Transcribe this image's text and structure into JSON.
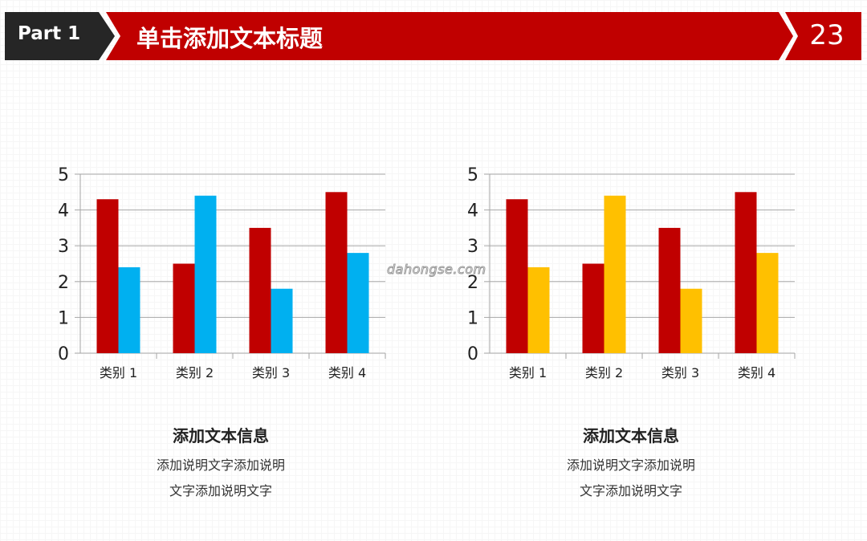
{
  "header": {
    "part_label": "Part 1",
    "title": "单击添加文本标题",
    "page_number": "23"
  },
  "colors": {
    "header_red": "#c00000",
    "header_dark": "#262626",
    "series_red": "#c00000",
    "series_blue": "#00b0f0",
    "series_yellow": "#ffc000"
  },
  "watermark": "dahongse.com",
  "chart_data": [
    {
      "type": "bar",
      "categories": [
        "类别 1",
        "类别 2",
        "类别 3",
        "类别 4"
      ],
      "series": [
        {
          "values": [
            4.3,
            2.5,
            3.5,
            4.5
          ],
          "color": "#c00000"
        },
        {
          "values": [
            2.4,
            4.4,
            1.8,
            2.8
          ],
          "color": "#00b0f0"
        }
      ],
      "yticks": [
        "0",
        "1",
        "2",
        "3",
        "4",
        "5"
      ],
      "ylim": [
        0,
        5
      ],
      "grid": true,
      "legend": "none"
    },
    {
      "type": "bar",
      "categories": [
        "类别 1",
        "类别 2",
        "类别 3",
        "类别 4"
      ],
      "series": [
        {
          "values": [
            4.3,
            2.5,
            3.5,
            4.5
          ],
          "color": "#c00000"
        },
        {
          "values": [
            2.4,
            4.4,
            1.8,
            2.8
          ],
          "color": "#ffc000"
        }
      ],
      "yticks": [
        "0",
        "1",
        "2",
        "3",
        "4",
        "5"
      ],
      "ylim": [
        0,
        5
      ],
      "grid": true,
      "legend": "none"
    }
  ],
  "captions": [
    {
      "title": "添加文本信息",
      "line1": "添加说明文字添加说明",
      "line2": "文字添加说明文字"
    },
    {
      "title": "添加文本信息",
      "line1": "添加说明文字添加说明",
      "line2": "文字添加说明文字"
    }
  ]
}
